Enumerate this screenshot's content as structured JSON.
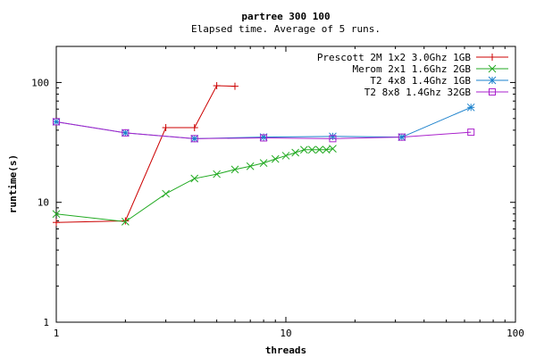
{
  "chart_data": {
    "type": "line",
    "title": "partree 300 100",
    "subtitle": "Elapsed time. Average of 5 runs.",
    "xlabel": "threads",
    "ylabel": "runtime(s)",
    "xscale": "log",
    "yscale": "log",
    "xlim": [
      1,
      100
    ],
    "ylim": [
      1,
      200
    ],
    "xticks": [
      1,
      10,
      100
    ],
    "xtick_labels": [
      "1",
      "10",
      "100"
    ],
    "yticks": [
      1,
      10,
      100
    ],
    "ytick_labels": [
      "1",
      "10",
      "100"
    ],
    "grid": false,
    "legend_position": "top-right",
    "series": [
      {
        "name": "Prescott 2M 1x2 3.0Ghz  1GB",
        "color": "#cc0000",
        "marker": "plus",
        "x": [
          1,
          2,
          3,
          4,
          5,
          6
        ],
        "y": [
          6.8,
          7.0,
          42,
          42,
          94,
          93
        ]
      },
      {
        "name": "Merom 2x1 1.6Ghz  2GB",
        "color": "#22aa22",
        "marker": "cross",
        "x": [
          1,
          2,
          3,
          4,
          5,
          6,
          7,
          8,
          9,
          10,
          11,
          12,
          13,
          14,
          15,
          16
        ],
        "y": [
          8.0,
          6.9,
          11.8,
          15.8,
          17.2,
          18.8,
          20.0,
          21.3,
          23.0,
          24.5,
          26.0,
          27.5,
          27.5,
          27.5,
          27.5,
          28.0
        ]
      },
      {
        "name": "T2 4x8 1.4Ghz  1GB",
        "color": "#1a80cc",
        "marker": "star",
        "x": [
          1,
          2,
          4,
          8,
          16,
          32,
          64
        ],
        "y": [
          47,
          38,
          34,
          35,
          35.5,
          35,
          62
        ]
      },
      {
        "name": "T2 8x8 1.4Ghz 32GB",
        "color": "#aa22cc",
        "marker": "box",
        "x": [
          1,
          2,
          4,
          8,
          16,
          32,
          64
        ],
        "y": [
          47,
          38,
          34,
          34.5,
          34,
          35,
          38.5
        ]
      }
    ]
  }
}
